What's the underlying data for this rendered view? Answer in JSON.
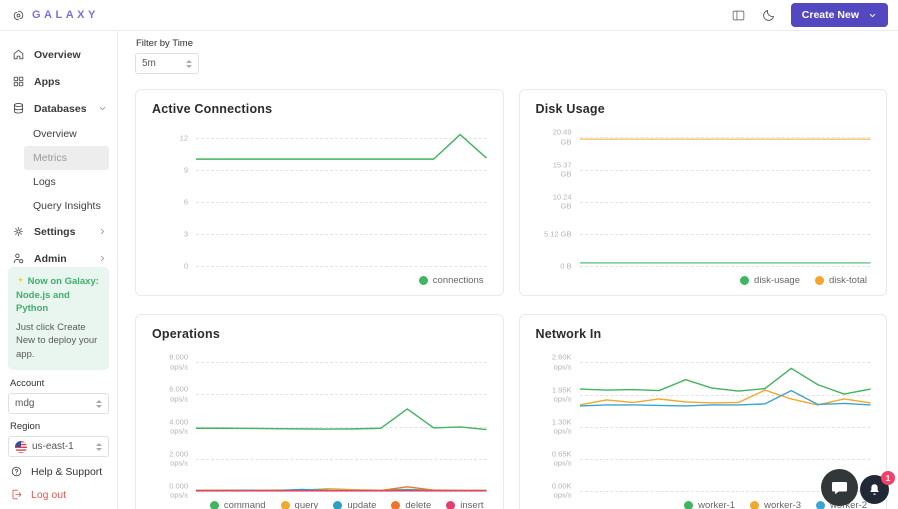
{
  "header": {
    "brand": "GALAXY",
    "create_new_label": "Create New",
    "icons": [
      "galaxy-logo",
      "panel-toggle",
      "dark-mode-moon",
      "chevron-down"
    ]
  },
  "sidebar": {
    "overview": "Overview",
    "apps": "Apps",
    "databases": "Databases",
    "db_children": {
      "overview": "Overview",
      "metrics": "Metrics",
      "logs": "Logs",
      "query_insights": "Query Insights"
    },
    "active_item": "Metrics",
    "settings": "Settings",
    "admin": "Admin",
    "promo": {
      "icon": "sparkles",
      "title": "Now on Galaxy: Node.js and Python",
      "body": "Just click Create New to deploy your app."
    },
    "account_label": "Account",
    "account_value": "mdg",
    "region_label": "Region",
    "region_value": "us-east-1",
    "region_icon": "us-flag",
    "help_label": "Help & Support",
    "logout_label": "Log out"
  },
  "toolbar": {
    "filter_label": "Filter by Time",
    "filter_value": "5m"
  },
  "floating": {
    "chat_icon": "chat-bubble",
    "bell_icon": "notification-bell",
    "notification_badge": "1"
  },
  "colors": {
    "accent": "#5348c0",
    "brand_text": "#7b72d9",
    "logout_red": "#e4574f",
    "promo_green": "#3fae6e",
    "active_item_bg": "#ededed"
  },
  "chart_data": [
    {
      "type": "line",
      "title": "Active Connections",
      "grid": "horizontal-dashed",
      "legend_position": "bottom-right",
      "ylim": [
        0,
        13.1
      ],
      "yticks": [
        {
          "value": 12,
          "label": "12"
        },
        {
          "value": 9,
          "label": "9"
        },
        {
          "value": 6,
          "label": "6"
        },
        {
          "value": 3,
          "label": "3"
        },
        {
          "value": 0,
          "label": "0"
        }
      ],
      "series": [
        {
          "name": "connections",
          "color": "#42b35f",
          "values": [
            10,
            10,
            10,
            10,
            10,
            10,
            10,
            10,
            10,
            10,
            12.3,
            10.1
          ]
        }
      ]
    },
    {
      "type": "line",
      "title": "Disk Usage",
      "grid": "horizontal-dashed",
      "legend_position": "bottom-right",
      "ylim": [
        0,
        22.3
      ],
      "yticks": [
        {
          "value": 20.49,
          "label": "20.49\nGB"
        },
        {
          "value": 15.37,
          "label": "15.37\nGB"
        },
        {
          "value": 10.24,
          "label": "10.24\nGB"
        },
        {
          "value": 5.12,
          "label": "5.12 GB"
        },
        {
          "value": 0,
          "label": "0 B"
        }
      ],
      "series": [
        {
          "name": "disk-usage",
          "color": "#6fcb8f",
          "dot_color": "#3db563",
          "values": [
            0.5,
            0.5,
            0.5,
            0.5,
            0.5,
            0.5,
            0.5,
            0.5,
            0.5,
            0.5,
            0.5,
            0.5
          ]
        },
        {
          "name": "disk-total",
          "color": "#f9c36f",
          "dot_color": "#f5a62a",
          "values": [
            20.2,
            20.2,
            20.2,
            20.2,
            20.2,
            20.2,
            20.2,
            20.2,
            20.2,
            20.2,
            20.2,
            20.2
          ]
        }
      ]
    },
    {
      "type": "line",
      "title": "Operations",
      "grid": "horizontal-dashed",
      "legend_position": "bottom-right",
      "ylim": [
        0,
        8.7
      ],
      "yticks": [
        {
          "value": 8,
          "label": "8.000\nops/s"
        },
        {
          "value": 6,
          "label": "6.000\nops/s"
        },
        {
          "value": 4,
          "label": "4.000\nops/s"
        },
        {
          "value": 2,
          "label": "2.000\nops/s"
        },
        {
          "value": 0,
          "label": "0.000\nops/s"
        }
      ],
      "series": [
        {
          "name": "command",
          "color": "#42b35f",
          "values": [
            3.9,
            3.9,
            3.89,
            3.87,
            3.86,
            3.85,
            3.86,
            3.9,
            5.1,
            3.92,
            3.98,
            3.82
          ]
        },
        {
          "name": "query",
          "color": "#f2a72e",
          "values": [
            0.05,
            0.06,
            0.05,
            0.06,
            0.05,
            0.14,
            0.08,
            0.05,
            0.1,
            0.06,
            0.05,
            0.05
          ]
        },
        {
          "name": "update",
          "color": "#2ba0c2",
          "values": [
            0.03,
            0.03,
            0.04,
            0.03,
            0.1,
            0.04,
            0.03,
            0.03,
            0.08,
            0.03,
            0.03,
            0.03
          ]
        },
        {
          "name": "delete",
          "color": "#f0742e",
          "values": [
            0.02,
            0.02,
            0.02,
            0.03,
            0.02,
            0.02,
            0.02,
            0.03,
            0.26,
            0.05,
            0.02,
            0.02
          ]
        },
        {
          "name": "insert",
          "color": "#e23e70",
          "values": [
            0.01,
            0.01,
            0.01,
            0.01,
            0.01,
            0.01,
            0.01,
            0.01,
            0.01,
            0.01,
            0.01,
            0.01
          ]
        }
      ]
    },
    {
      "type": "line",
      "title": "Network In",
      "grid": "horizontal-dashed",
      "legend_position": "bottom-right",
      "ylim": [
        0,
        2.83
      ],
      "yticks": [
        {
          "value": 2.6,
          "label": "2.60K\nops/s"
        },
        {
          "value": 1.95,
          "label": "1.95K\nops/s"
        },
        {
          "value": 1.3,
          "label": "1.30K\nops/s"
        },
        {
          "value": 0.65,
          "label": "0.65K\nops/s"
        },
        {
          "value": 0,
          "label": "0.00K\nops/s"
        }
      ],
      "series": [
        {
          "name": "worker-1",
          "color": "#42b35f",
          "values": [
            2.06,
            2.04,
            2.05,
            2.03,
            2.25,
            2.08,
            2.02,
            2.07,
            2.48,
            2.15,
            1.96,
            2.06
          ]
        },
        {
          "name": "worker-3",
          "color": "#f2a72e",
          "values": [
            1.74,
            1.84,
            1.79,
            1.86,
            1.8,
            1.78,
            1.79,
            2.04,
            1.86,
            1.74,
            1.86,
            1.78
          ]
        },
        {
          "name": "worker-2",
          "color": "#3aa5d1",
          "values": [
            1.72,
            1.74,
            1.74,
            1.73,
            1.72,
            1.74,
            1.74,
            1.76,
            2.03,
            1.75,
            1.77,
            1.74
          ]
        }
      ]
    }
  ]
}
